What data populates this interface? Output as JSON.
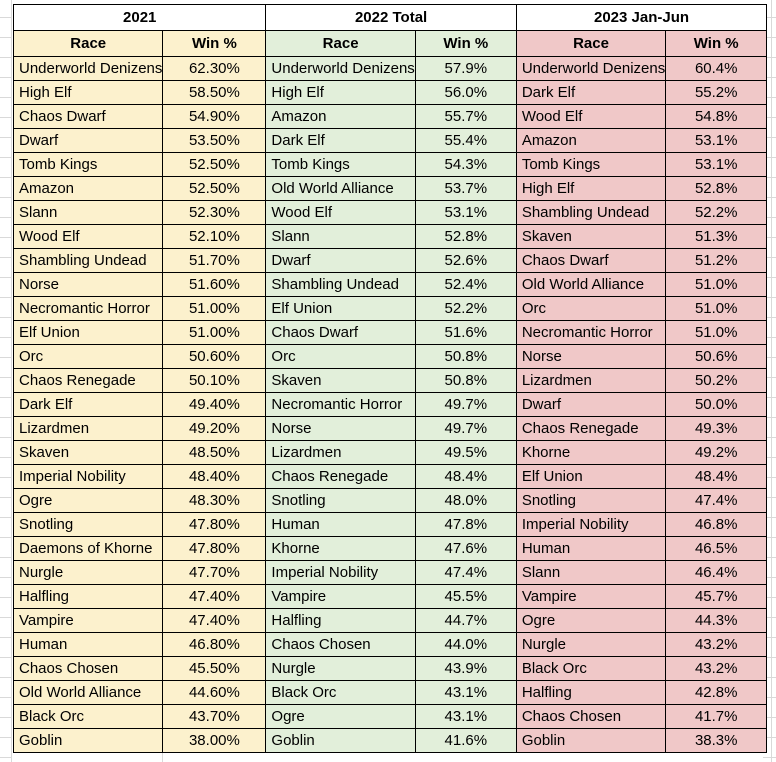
{
  "colors": {
    "section_2021_fill": "#FCF1CD",
    "section_2022_fill": "#E2EFDA",
    "section_2023_fill": "#F0C8C8",
    "header_fill": "#FFFFFF",
    "cell_border": "#000000",
    "gridline": "#D9D9D9",
    "text": "#000000"
  },
  "sections": [
    {
      "title": "2021",
      "columns": [
        "Race",
        "Win %"
      ],
      "rows": [
        [
          "Underworld Denizens",
          "62.30%"
        ],
        [
          "High Elf",
          "58.50%"
        ],
        [
          "Chaos Dwarf",
          "54.90%"
        ],
        [
          "Dwarf",
          "53.50%"
        ],
        [
          "Tomb Kings",
          "52.50%"
        ],
        [
          "Amazon",
          "52.50%"
        ],
        [
          "Slann",
          "52.30%"
        ],
        [
          "Wood Elf",
          "52.10%"
        ],
        [
          "Shambling Undead",
          "51.70%"
        ],
        [
          "Norse",
          "51.60%"
        ],
        [
          "Necromantic Horror",
          "51.00%"
        ],
        [
          "Elf Union",
          "51.00%"
        ],
        [
          "Orc",
          "50.60%"
        ],
        [
          "Chaos Renegade",
          "50.10%"
        ],
        [
          "Dark Elf",
          "49.40%"
        ],
        [
          "Lizardmen",
          "49.20%"
        ],
        [
          "Skaven",
          "48.50%"
        ],
        [
          "Imperial Nobility",
          "48.40%"
        ],
        [
          "Ogre",
          "48.30%"
        ],
        [
          "Snotling",
          "47.80%"
        ],
        [
          "Daemons of Khorne",
          "47.80%"
        ],
        [
          "Nurgle",
          "47.70%"
        ],
        [
          "Halfling",
          "47.40%"
        ],
        [
          "Vampire",
          "47.40%"
        ],
        [
          "Human",
          "46.80%"
        ],
        [
          "Chaos Chosen",
          "45.50%"
        ],
        [
          "Old World Alliance",
          "44.60%"
        ],
        [
          "Black Orc",
          "43.70%"
        ],
        [
          "Goblin",
          "38.00%"
        ]
      ]
    },
    {
      "title": "2022 Total",
      "columns": [
        "Race",
        "Win %"
      ],
      "rows": [
        [
          "Underworld Denizens",
          "57.9%"
        ],
        [
          "High Elf",
          "56.0%"
        ],
        [
          "Amazon",
          "55.7%"
        ],
        [
          "Dark Elf",
          "55.4%"
        ],
        [
          "Tomb Kings",
          "54.3%"
        ],
        [
          "Old World Alliance",
          "53.7%"
        ],
        [
          "Wood Elf",
          "53.1%"
        ],
        [
          "Slann",
          "52.8%"
        ],
        [
          "Dwarf",
          "52.6%"
        ],
        [
          "Shambling Undead",
          "52.4%"
        ],
        [
          "Elf Union",
          "52.2%"
        ],
        [
          "Chaos Dwarf",
          "51.6%"
        ],
        [
          "Orc",
          "50.8%"
        ],
        [
          "Skaven",
          "50.8%"
        ],
        [
          "Necromantic Horror",
          "49.7%"
        ],
        [
          "Norse",
          "49.7%"
        ],
        [
          "Lizardmen",
          "49.5%"
        ],
        [
          "Chaos Renegade",
          "48.4%"
        ],
        [
          "Snotling",
          "48.0%"
        ],
        [
          "Human",
          "47.8%"
        ],
        [
          "Khorne",
          "47.6%"
        ],
        [
          "Imperial Nobility",
          "47.4%"
        ],
        [
          "Vampire",
          "45.5%"
        ],
        [
          "Halfling",
          "44.7%"
        ],
        [
          "Chaos Chosen",
          "44.0%"
        ],
        [
          "Nurgle",
          "43.9%"
        ],
        [
          "Black Orc",
          "43.1%"
        ],
        [
          "Ogre",
          "43.1%"
        ],
        [
          "Goblin",
          "41.6%"
        ]
      ]
    },
    {
      "title": "2023 Jan-Jun",
      "columns": [
        "Race",
        "Win %"
      ],
      "rows": [
        [
          "Underworld Denizens",
          "60.4%"
        ],
        [
          "Dark Elf",
          "55.2%"
        ],
        [
          "Wood Elf",
          "54.8%"
        ],
        [
          "Amazon",
          "53.1%"
        ],
        [
          "Tomb Kings",
          "53.1%"
        ],
        [
          "High Elf",
          "52.8%"
        ],
        [
          "Shambling Undead",
          "52.2%"
        ],
        [
          "Skaven",
          "51.3%"
        ],
        [
          "Chaos Dwarf",
          "51.2%"
        ],
        [
          "Old World Alliance",
          "51.0%"
        ],
        [
          "Orc",
          "51.0%"
        ],
        [
          "Necromantic Horror",
          "51.0%"
        ],
        [
          "Norse",
          "50.6%"
        ],
        [
          "Lizardmen",
          "50.2%"
        ],
        [
          "Dwarf",
          "50.0%"
        ],
        [
          "Chaos Renegade",
          "49.3%"
        ],
        [
          "Khorne",
          "49.2%"
        ],
        [
          "Elf Union",
          "48.4%"
        ],
        [
          "Snotling",
          "47.4%"
        ],
        [
          "Imperial Nobility",
          "46.8%"
        ],
        [
          "Human",
          "46.5%"
        ],
        [
          "Slann",
          "46.4%"
        ],
        [
          "Vampire",
          "45.7%"
        ],
        [
          "Ogre",
          "44.3%"
        ],
        [
          "Nurgle",
          "43.2%"
        ],
        [
          "Black Orc",
          "43.2%"
        ],
        [
          "Halfling",
          "42.8%"
        ],
        [
          "Chaos Chosen",
          "41.7%"
        ],
        [
          "Goblin",
          "38.3%"
        ]
      ]
    }
  ]
}
